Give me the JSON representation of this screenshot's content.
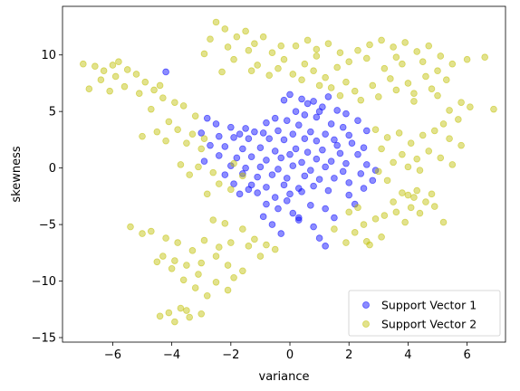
{
  "chart_data": {
    "type": "scatter",
    "xlabel": "variance",
    "ylabel": "skewness",
    "xlim": [
      -7.7,
      7.3
    ],
    "ylim": [
      -15.4,
      14.3
    ],
    "xticks": [
      -6,
      -4,
      -2,
      0,
      2,
      4,
      6
    ],
    "yticks": [
      -15,
      -10,
      -5,
      0,
      5,
      10
    ],
    "grid": false,
    "legend_position": "bottom-right",
    "series": [
      {
        "name": "Support Vector 1",
        "color": "#0000ff",
        "points": [
          [
            -4.2,
            8.5
          ],
          [
            0.0,
            6.5
          ],
          [
            -0.2,
            6.0
          ],
          [
            0.4,
            6.1
          ],
          [
            1.3,
            6.3
          ],
          [
            0.6,
            5.7
          ],
          [
            0.8,
            5.9
          ],
          [
            1.1,
            5.4
          ],
          [
            0.2,
            5.0
          ],
          [
            1.6,
            5.1
          ],
          [
            1.9,
            4.8
          ],
          [
            2.3,
            4.2
          ],
          [
            0.9,
            4.5
          ],
          [
            -0.5,
            4.4
          ],
          [
            -0.8,
            4.0
          ],
          [
            -0.1,
            4.2
          ],
          [
            0.3,
            3.8
          ],
          [
            1.4,
            3.9
          ],
          [
            1.8,
            3.6
          ],
          [
            2.6,
            3.3
          ],
          [
            -2.8,
            4.4
          ],
          [
            -2.5,
            3.9
          ],
          [
            -2.0,
            3.6
          ],
          [
            -1.5,
            3.5
          ],
          [
            -1.2,
            3.2
          ],
          [
            -0.9,
            3.1
          ],
          [
            -0.4,
            3.3
          ],
          [
            0.1,
            3.0
          ],
          [
            0.7,
            3.2
          ],
          [
            1.2,
            3.0
          ],
          [
            2.0,
            2.9
          ],
          [
            -3.0,
            3.1
          ],
          [
            -2.4,
            2.8
          ],
          [
            -1.9,
            2.7
          ],
          [
            -1.4,
            2.6
          ],
          [
            -0.7,
            2.6
          ],
          [
            -0.2,
            2.5
          ],
          [
            0.5,
            2.6
          ],
          [
            0.9,
            2.4
          ],
          [
            1.5,
            2.5
          ],
          [
            2.1,
            2.2
          ],
          [
            2.5,
            1.8
          ],
          [
            -2.7,
            2.0
          ],
          [
            -2.2,
            1.9
          ],
          [
            -1.6,
            1.7
          ],
          [
            -1.0,
            1.8
          ],
          [
            -0.5,
            1.5
          ],
          [
            0.2,
            1.7
          ],
          [
            0.6,
            1.4
          ],
          [
            1.1,
            1.6
          ],
          [
            1.7,
            1.3
          ],
          [
            2.3,
            1.2
          ],
          [
            -2.4,
            1.1
          ],
          [
            -1.8,
            0.9
          ],
          [
            -1.3,
            1.0
          ],
          [
            -0.8,
            0.7
          ],
          [
            -0.3,
            0.9
          ],
          [
            0.4,
            0.5
          ],
          [
            0.9,
            0.8
          ],
          [
            1.4,
            0.6
          ],
          [
            1.9,
            0.4
          ],
          [
            2.6,
            0.3
          ],
          [
            -2.0,
            0.2
          ],
          [
            -1.5,
            0.0
          ],
          [
            -1.0,
            0.1
          ],
          [
            -0.4,
            -0.1
          ],
          [
            0.1,
            0.2
          ],
          [
            0.7,
            -0.2
          ],
          [
            1.2,
            0.1
          ],
          [
            1.8,
            -0.3
          ],
          [
            2.4,
            -0.5
          ],
          [
            2.8,
            -1.1
          ],
          [
            -2.2,
            -0.6
          ],
          [
            -1.6,
            -0.5
          ],
          [
            -1.1,
            -0.8
          ],
          [
            -0.6,
            -0.6
          ],
          [
            -0.1,
            -0.9
          ],
          [
            0.5,
            -0.7
          ],
          [
            1.0,
            -1.0
          ],
          [
            1.5,
            -0.9
          ],
          [
            2.0,
            -1.3
          ],
          [
            2.5,
            -1.8
          ],
          [
            -1.9,
            -1.4
          ],
          [
            -1.3,
            -1.5
          ],
          [
            -0.8,
            -1.7
          ],
          [
            -0.2,
            -1.5
          ],
          [
            0.3,
            -1.8
          ],
          [
            0.8,
            -1.6
          ],
          [
            1.3,
            -2.0
          ],
          [
            2.0,
            -2.4
          ],
          [
            2.2,
            -3.2
          ],
          [
            -1.7,
            -2.3
          ],
          [
            -1.1,
            -2.2
          ],
          [
            -0.5,
            -2.6
          ],
          [
            0.0,
            -2.3
          ],
          [
            -0.8,
            -3.2
          ],
          [
            -0.4,
            -3.6
          ],
          [
            0.1,
            -4.0
          ],
          [
            -0.9,
            -4.3
          ],
          [
            0.3,
            -4.6
          ],
          [
            -0.6,
            -5.0
          ],
          [
            -0.3,
            -5.8
          ],
          [
            0.7,
            -3.3
          ],
          [
            1.2,
            -3.6
          ],
          [
            1.5,
            -4.4
          ],
          [
            0.8,
            -5.2
          ],
          [
            0.3,
            -4.4
          ],
          [
            1.0,
            -6.2
          ],
          [
            1.2,
            -6.9
          ],
          [
            -0.1,
            -2.9
          ],
          [
            0.4,
            -2.1
          ],
          [
            -1.4,
            -1.9
          ],
          [
            1.6,
            2.0
          ],
          [
            0.0,
            1.2
          ],
          [
            -2.9,
            0.6
          ],
          [
            2.9,
            -0.2
          ],
          [
            1.0,
            5.0
          ],
          [
            0.5,
            4.7
          ],
          [
            -1.7,
            3.0
          ]
        ]
      },
      {
        "name": "Support Vector 2",
        "color": "#bfbf00",
        "points": [
          [
            -7.0,
            9.2
          ],
          [
            -6.6,
            9.0
          ],
          [
            -6.3,
            8.6
          ],
          [
            -5.8,
            9.4
          ],
          [
            -5.5,
            8.7
          ],
          [
            -5.9,
            8.1
          ],
          [
            -6.4,
            7.8
          ],
          [
            -5.2,
            8.3
          ],
          [
            -4.9,
            7.6
          ],
          [
            -5.6,
            7.2
          ],
          [
            -6.1,
            6.8
          ],
          [
            -6.8,
            7.0
          ],
          [
            -5.1,
            6.6
          ],
          [
            -4.6,
            6.9
          ],
          [
            -4.3,
            6.2
          ],
          [
            -3.9,
            5.8
          ],
          [
            -4.7,
            5.2
          ],
          [
            -3.6,
            5.5
          ],
          [
            -3.2,
            4.6
          ],
          [
            -4.1,
            4.1
          ],
          [
            -3.8,
            3.4
          ],
          [
            -4.5,
            3.2
          ],
          [
            -3.3,
            3.0
          ],
          [
            -5.0,
            2.8
          ],
          [
            -4.2,
            2.4
          ],
          [
            -3.5,
            2.2
          ],
          [
            -2.9,
            2.6
          ],
          [
            -3.0,
            1.7
          ],
          [
            -3.7,
            0.3
          ],
          [
            -3.1,
            0.1
          ],
          [
            -2.6,
            -0.4
          ],
          [
            -3.4,
            -0.6
          ],
          [
            -2.4,
            -1.4
          ],
          [
            -2.0,
            -1.9
          ],
          [
            -2.8,
            -2.3
          ],
          [
            -1.6,
            -0.7
          ],
          [
            -1.9,
            0.4
          ],
          [
            -2.5,
            12.9
          ],
          [
            -2.2,
            12.3
          ],
          [
            -1.8,
            11.6
          ],
          [
            -1.5,
            12.1
          ],
          [
            -2.7,
            11.4
          ],
          [
            -1.2,
            11.0
          ],
          [
            -0.9,
            11.6
          ],
          [
            -2.1,
            10.7
          ],
          [
            -1.4,
            10.4
          ],
          [
            -0.6,
            10.2
          ],
          [
            -0.2,
            9.6
          ],
          [
            0.2,
            10.8
          ],
          [
            0.6,
            11.3
          ],
          [
            0.9,
            10.5
          ],
          [
            1.3,
            11.0
          ],
          [
            0.5,
            9.2
          ],
          [
            -0.4,
            8.8
          ],
          [
            0.1,
            8.3
          ],
          [
            0.8,
            8.6
          ],
          [
            1.2,
            8.0
          ],
          [
            1.6,
            8.9
          ],
          [
            2.0,
            9.4
          ],
          [
            2.3,
            10.4
          ],
          [
            2.7,
            10.9
          ],
          [
            3.1,
            11.3
          ],
          [
            3.5,
            10.7
          ],
          [
            3.9,
            11.1
          ],
          [
            4.3,
            10.3
          ],
          [
            4.7,
            10.8
          ],
          [
            5.1,
            9.9
          ],
          [
            4.5,
            9.4
          ],
          [
            3.8,
            9.2
          ],
          [
            3.2,
            8.8
          ],
          [
            2.6,
            9.7
          ],
          [
            1.9,
            7.6
          ],
          [
            2.2,
            6.8
          ],
          [
            2.8,
            7.3
          ],
          [
            3.4,
            7.9
          ],
          [
            4.0,
            7.5
          ],
          [
            4.6,
            8.1
          ],
          [
            5.0,
            8.6
          ],
          [
            5.3,
            7.8
          ],
          [
            4.8,
            7.0
          ],
          [
            4.2,
            6.6
          ],
          [
            3.6,
            6.9
          ],
          [
            3.0,
            6.3
          ],
          [
            2.4,
            6.0
          ],
          [
            1.7,
            6.4
          ],
          [
            1.4,
            7.1
          ],
          [
            1.0,
            7.3
          ],
          [
            0.4,
            7.8
          ],
          [
            -0.7,
            8.2
          ],
          [
            -1.1,
            9.1
          ],
          [
            -2.3,
            8.5
          ],
          [
            -1.9,
            9.6
          ],
          [
            -2.9,
            10.1
          ],
          [
            6.0,
            9.6
          ],
          [
            6.6,
            9.8
          ],
          [
            5.8,
            5.8
          ],
          [
            5.4,
            5.1
          ],
          [
            6.1,
            5.4
          ],
          [
            5.7,
            4.3
          ],
          [
            6.9,
            5.2
          ],
          [
            5.2,
            3.9
          ],
          [
            4.9,
            3.3
          ],
          [
            4.5,
            2.9
          ],
          [
            5.4,
            2.6
          ],
          [
            5.8,
            2.0
          ],
          [
            4.1,
            2.2
          ],
          [
            3.7,
            3.1
          ],
          [
            3.3,
            2.7
          ],
          [
            2.9,
            3.4
          ],
          [
            3.1,
            1.7
          ],
          [
            3.8,
            1.2
          ],
          [
            4.3,
            0.8
          ],
          [
            4.7,
            1.5
          ],
          [
            5.1,
            0.9
          ],
          [
            5.5,
            0.3
          ],
          [
            4.4,
            -0.2
          ],
          [
            4.0,
            0.1
          ],
          [
            3.5,
            0.5
          ],
          [
            3.0,
            -0.3
          ],
          [
            3.3,
            -1.1
          ],
          [
            3.8,
            -2.2
          ],
          [
            4.2,
            -2.6
          ],
          [
            4.6,
            -3.0
          ],
          [
            4.1,
            -3.5
          ],
          [
            3.6,
            -3.9
          ],
          [
            3.2,
            -4.2
          ],
          [
            4.4,
            -4.0
          ],
          [
            4.9,
            -3.4
          ],
          [
            5.2,
            -4.8
          ],
          [
            4.0,
            -2.4
          ],
          [
            3.5,
            -3.0
          ],
          [
            2.9,
            -4.5
          ],
          [
            2.5,
            -5.0
          ],
          [
            2.2,
            -5.7
          ],
          [
            2.6,
            -6.5
          ],
          [
            3.1,
            -6.1
          ],
          [
            1.9,
            -6.6
          ],
          [
            1.5,
            -5.4
          ],
          [
            2.3,
            -3.5
          ],
          [
            4.3,
            -2.0
          ],
          [
            4.8,
            -2.3
          ],
          [
            3.9,
            -4.8
          ],
          [
            -2.6,
            -4.6
          ],
          [
            -2.2,
            -4.9
          ],
          [
            -1.6,
            -5.4
          ],
          [
            -2.0,
            -6.6
          ],
          [
            -2.4,
            -7.0
          ],
          [
            -2.9,
            -6.4
          ],
          [
            -3.3,
            -7.3
          ],
          [
            -3.8,
            -6.6
          ],
          [
            -4.3,
            -7.8
          ],
          [
            -3.9,
            -8.2
          ],
          [
            -3.5,
            -8.6
          ],
          [
            -3.0,
            -8.4
          ],
          [
            -2.5,
            -7.8
          ],
          [
            -2.1,
            -8.6
          ],
          [
            -1.6,
            -9.1
          ],
          [
            -1.9,
            -9.7
          ],
          [
            -2.5,
            -10.1
          ],
          [
            -3.1,
            -9.4
          ],
          [
            -3.6,
            -9.9
          ],
          [
            -4.0,
            -8.9
          ],
          [
            -4.5,
            -8.3
          ],
          [
            -5.0,
            -5.8
          ],
          [
            -5.4,
            -5.2
          ],
          [
            -4.7,
            -5.6
          ],
          [
            -4.2,
            -6.2
          ],
          [
            -1.2,
            -6.3
          ],
          [
            -0.8,
            -6.8
          ],
          [
            -0.5,
            -7.2
          ],
          [
            -1.0,
            -7.8
          ],
          [
            -1.4,
            -6.9
          ],
          [
            -2.8,
            -11.3
          ],
          [
            -3.2,
            -10.6
          ],
          [
            -2.1,
            -10.8
          ],
          [
            -3.7,
            -12.4
          ],
          [
            -4.1,
            -12.8
          ],
          [
            -3.4,
            -13.2
          ],
          [
            -3.9,
            -13.6
          ],
          [
            -3.0,
            -12.9
          ],
          [
            -4.4,
            -13.1
          ],
          [
            -3.5,
            -12.6
          ],
          [
            -0.3,
            10.8
          ],
          [
            1.7,
            10.2
          ],
          [
            3.6,
            9.8
          ],
          [
            5.5,
            9.2
          ],
          [
            -6.0,
            9.1
          ],
          [
            -4.4,
            7.3
          ],
          [
            2.0,
            -3.9
          ],
          [
            2.7,
            -6.8
          ],
          [
            -1.3,
            8.6
          ],
          [
            0.9,
            9.9
          ],
          [
            4.2,
            5.9
          ],
          [
            5.0,
            6.4
          ]
        ]
      }
    ]
  }
}
